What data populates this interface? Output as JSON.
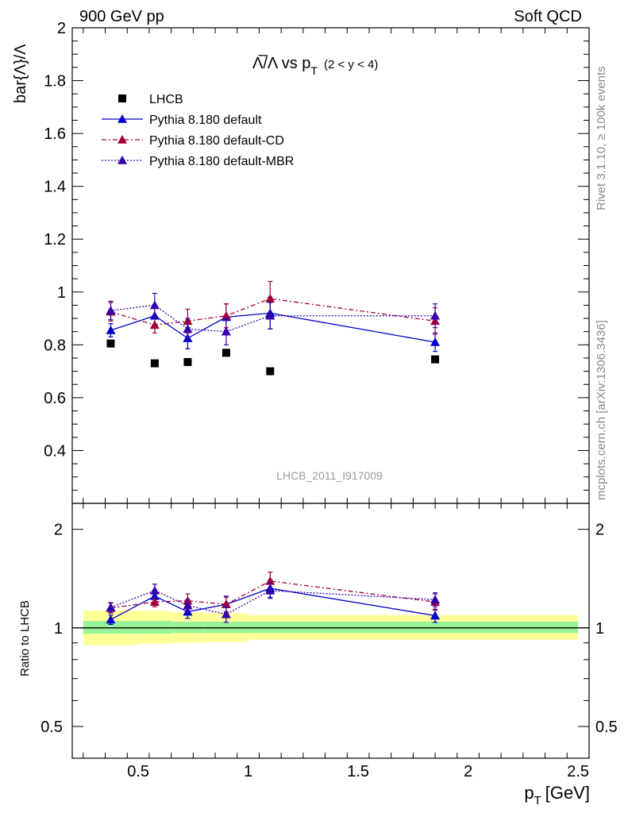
{
  "header": {
    "energy_label": "900 GeV pp",
    "process_label": "Soft QCD"
  },
  "side_labels": {
    "rivet": "Rivet 3.1.10, ≥ 100k events",
    "source": "mcplots.cern.ch [arXiv:1306.3436]"
  },
  "colors": {
    "data": "#000000",
    "default": "#0000cc",
    "cd": "#a0003a",
    "mbr": "#3300aa",
    "band_inner": "#99f299",
    "band_outer": "#ffff99",
    "watermark": "#999999"
  },
  "chart_data": [
    {
      "type": "scatter",
      "panel": "main",
      "title_main": "Λ̅/Λ vs p",
      "title_sub": "T",
      "title_range": "(2 < y < 4)",
      "ylabel": "bar{Λ}/Λ",
      "watermark": "LHCB_2011_I917009",
      "xlim": [
        0.2,
        2.55
      ],
      "ylim": [
        0.2,
        2.0
      ],
      "yticks": [
        0.4,
        0.6,
        0.8,
        1,
        1.2,
        1.4,
        1.6,
        1.8,
        2
      ],
      "ytick_labels": [
        "0.4",
        "0.6",
        "0.8",
        "1",
        "1.2",
        "1.4",
        "1.6",
        "1.8",
        "2"
      ],
      "legend_position": "top-left",
      "x": [
        0.375,
        0.575,
        0.725,
        0.9,
        1.1,
        1.85
      ],
      "series": [
        {
          "key": "data",
          "name": "LHCB",
          "style": "marker",
          "values": [
            0.805,
            0.73,
            0.735,
            0.77,
            0.7,
            0.745
          ],
          "errors": [
            0,
            0,
            0,
            0,
            0,
            0
          ]
        },
        {
          "key": "default",
          "name": "Pythia 8.180 default",
          "style": "solid",
          "values": [
            0.855,
            0.91,
            0.825,
            0.905,
            0.92,
            0.81
          ],
          "errors": [
            0.025,
            0.04,
            0.04,
            0.05,
            0.06,
            0.035
          ]
        },
        {
          "key": "cd",
          "name": "Pythia 8.180 default-CD",
          "style": "dashdot",
          "values": [
            0.925,
            0.875,
            0.89,
            0.91,
            0.975,
            0.89
          ],
          "errors": [
            0.035,
            0.03,
            0.045,
            0.045,
            0.065,
            0.05
          ]
        },
        {
          "key": "mbr",
          "name": "Pythia 8.180 default-MBR",
          "style": "dotted",
          "values": [
            0.93,
            0.95,
            0.86,
            0.85,
            0.91,
            0.91
          ],
          "errors": [
            0.035,
            0.045,
            0.04,
            0.05,
            0.05,
            0.045
          ]
        }
      ]
    },
    {
      "type": "scatter",
      "panel": "ratio",
      "ylabel": "Ratio to LHCB",
      "xlabel_main": "p",
      "xlabel_sub": "T",
      "xlabel_unit": "[GeV]",
      "xlim": [
        0.2,
        2.55
      ],
      "ylim": [
        0.4,
        2.4
      ],
      "log_y": true,
      "yticks": [
        0.5,
        1,
        2
      ],
      "ytick_labels": [
        "0.5",
        "1",
        "2"
      ],
      "xticks": [
        0.5,
        1,
        1.5,
        2,
        2.5
      ],
      "xtick_labels": [
        "0.5",
        "1",
        "1.5",
        "2",
        "2.5"
      ],
      "x": [
        0.375,
        0.575,
        0.725,
        0.9,
        1.1,
        1.85
      ],
      "band_edges": [
        0.25,
        0.5,
        0.65,
        0.8,
        1.0,
        1.2,
        2.5
      ],
      "band_inner": [
        [
          0.96,
          1.05
        ],
        [
          0.96,
          1.05
        ],
        [
          0.965,
          1.045
        ],
        [
          0.965,
          1.045
        ],
        [
          0.965,
          1.045
        ],
        [
          0.965,
          1.045
        ]
      ],
      "band_outer": [
        [
          0.885,
          1.13
        ],
        [
          0.895,
          1.125
        ],
        [
          0.9,
          1.115
        ],
        [
          0.905,
          1.11
        ],
        [
          0.92,
          1.095
        ],
        [
          0.92,
          1.095
        ]
      ],
      "series": [
        {
          "key": "default",
          "name": "Pythia 8.180 default",
          "style": "solid",
          "values": [
            1.06,
            1.25,
            1.12,
            1.18,
            1.32,
            1.09
          ],
          "errors": [
            0.035,
            0.05,
            0.05,
            0.07,
            0.08,
            0.05
          ]
        },
        {
          "key": "cd",
          "name": "Pythia 8.180 default-CD",
          "style": "dashdot",
          "values": [
            1.15,
            1.2,
            1.21,
            1.18,
            1.39,
            1.2
          ],
          "errors": [
            0.04,
            0.04,
            0.06,
            0.06,
            0.09,
            0.07
          ]
        },
        {
          "key": "mbr",
          "name": "Pythia 8.180 default-MBR",
          "style": "dotted",
          "values": [
            1.155,
            1.3,
            1.17,
            1.1,
            1.3,
            1.22
          ],
          "errors": [
            0.04,
            0.06,
            0.05,
            0.06,
            0.07,
            0.06
          ]
        }
      ]
    }
  ]
}
